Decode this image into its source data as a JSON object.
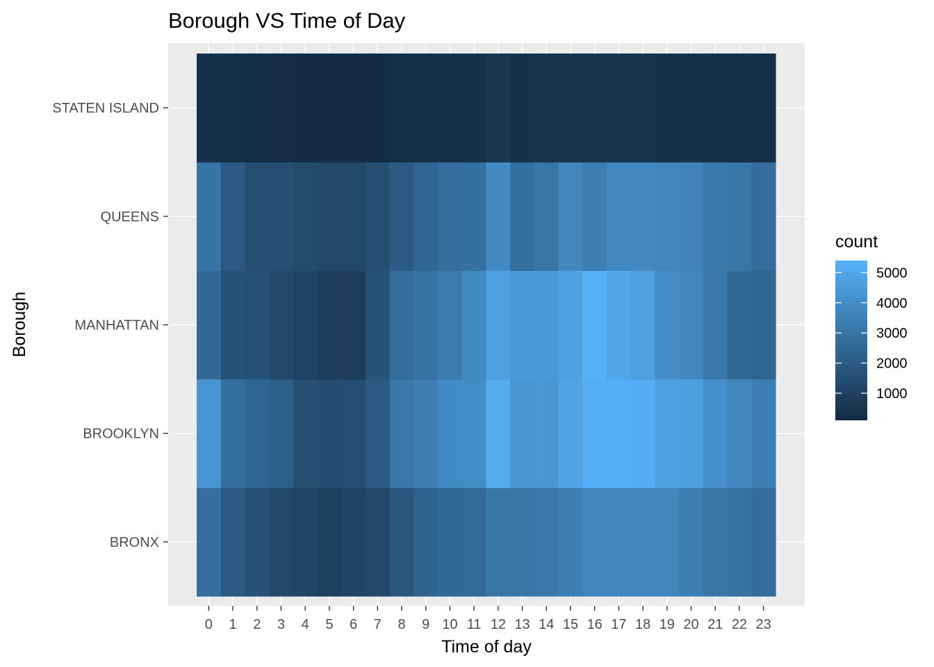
{
  "chart_data": {
    "type": "heatmap",
    "title": "Borough VS Time of Day",
    "xlabel": "Time of day",
    "ylabel": "Borough",
    "x": [
      "0",
      "1",
      "2",
      "3",
      "4",
      "5",
      "6",
      "7",
      "8",
      "9",
      "10",
      "11",
      "12",
      "13",
      "14",
      "15",
      "16",
      "17",
      "18",
      "19",
      "20",
      "21",
      "22",
      "23"
    ],
    "y": [
      "BRONX",
      "BROOKLYN",
      "MANHATTAN",
      "QUEENS",
      "STATEN ISLAND"
    ],
    "values": [
      [
        2800,
        2000,
        1700,
        1300,
        1150,
        950,
        1100,
        1300,
        1800,
        2300,
        2500,
        2600,
        3100,
        3100,
        3150,
        3400,
        3700,
        3700,
        3700,
        3700,
        3400,
        3050,
        2900,
        2700
      ],
      [
        4300,
        2800,
        2400,
        2150,
        1500,
        1450,
        1500,
        1950,
        3150,
        3400,
        3900,
        3950,
        5200,
        4300,
        4350,
        4900,
        5300,
        5300,
        5250,
        4750,
        4650,
        4150,
        3750,
        3450
      ],
      [
        2500,
        1700,
        1600,
        1300,
        1100,
        800,
        800,
        1700,
        2750,
        3000,
        3350,
        3850,
        4700,
        4450,
        4450,
        4750,
        5400,
        4950,
        4700,
        3950,
        3750,
        3150,
        2500,
        2400
      ],
      [
        3000,
        2000,
        1500,
        1550,
        1350,
        1300,
        1300,
        1500,
        2000,
        2450,
        2750,
        2800,
        3900,
        2800,
        3050,
        3700,
        3400,
        3800,
        3800,
        3700,
        3600,
        3200,
        3100,
        2700
      ],
      [
        350,
        250,
        200,
        150,
        100,
        100,
        100,
        100,
        250,
        300,
        350,
        350,
        500,
        350,
        400,
        400,
        400,
        400,
        400,
        350,
        350,
        300,
        250,
        250
      ]
    ],
    "color_scale": {
      "low": "#132b43",
      "high": "#56b1f7",
      "min": 100,
      "max": 5400
    },
    "legend": {
      "title": "count",
      "ticks": [
        1000,
        2000,
        3000,
        4000,
        5000
      ],
      "position": "right"
    },
    "grid": true,
    "panel_background": "#ebebeb",
    "grid_color": "#ffffff"
  }
}
